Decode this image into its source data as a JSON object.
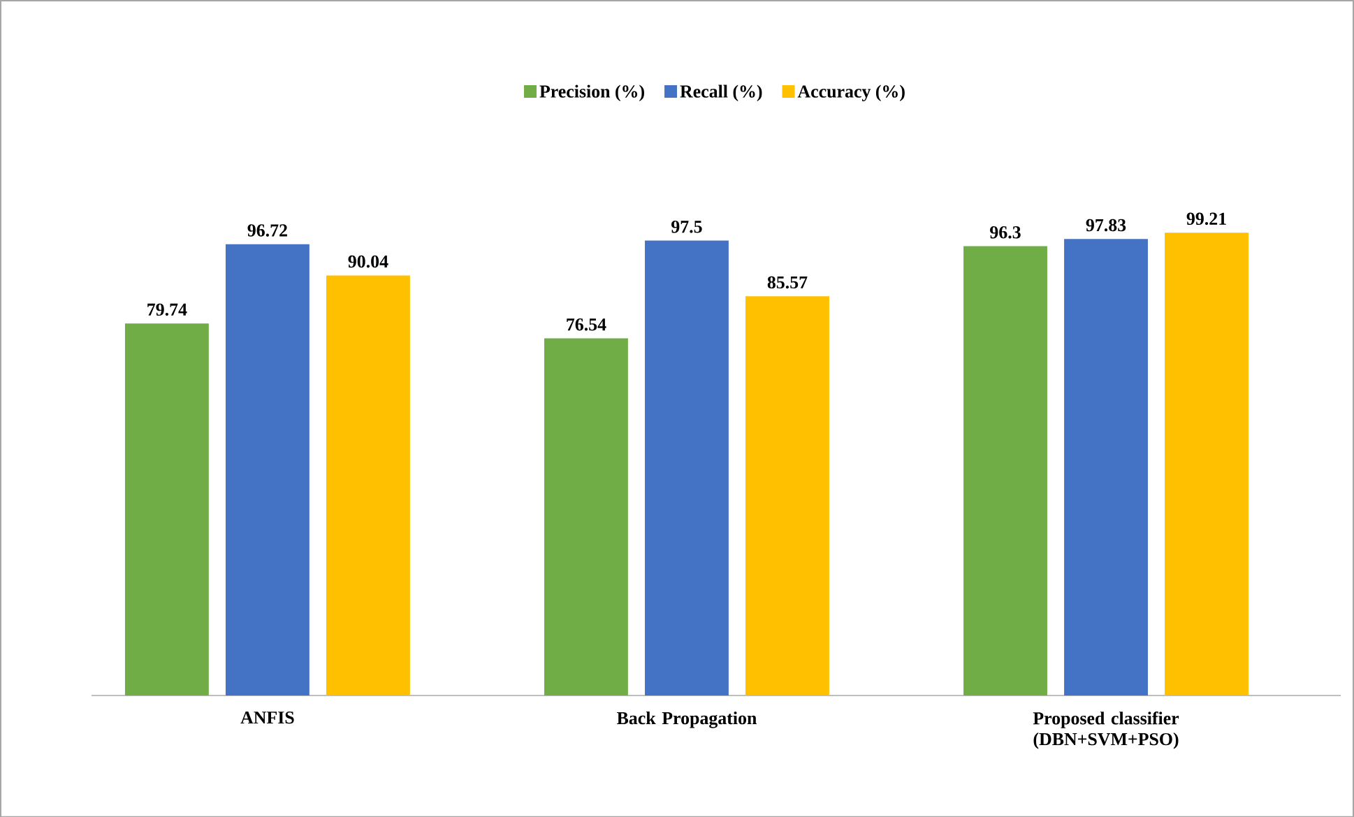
{
  "chart_data": {
    "type": "bar",
    "categories": [
      "ANFIS",
      "Back Propagation",
      "Proposed classifier (DBN+SVM+PSO)"
    ],
    "series": [
      {
        "name": "Precision (%)",
        "color": "#70ad47",
        "values": [
          79.74,
          76.54,
          96.3
        ]
      },
      {
        "name": "Recall (%)",
        "color": "#4472c4",
        "values": [
          96.72,
          97.5,
          97.83
        ]
      },
      {
        "name": "Accuracy (%)",
        "color": "#ffc000",
        "values": [
          90.04,
          85.57,
          99.21
        ]
      }
    ],
    "data_labels": true,
    "legend": "top"
  }
}
